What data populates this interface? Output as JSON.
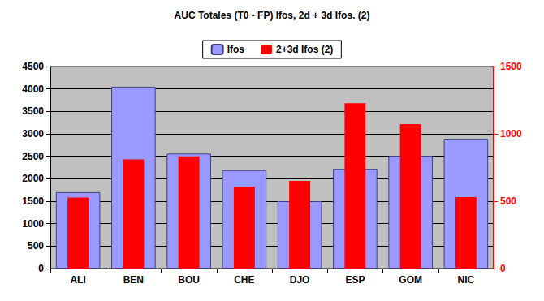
{
  "chart_data": {
    "type": "bar",
    "title": "AUC Totales (T0 - FP) Ifos, 2d + 3d Ifos. (2)",
    "categories": [
      "ALI",
      "BEN",
      "BOU",
      "CHE",
      "DJO",
      "ESP",
      "GOM",
      "NIC"
    ],
    "series": [
      {
        "name": "Ifos",
        "color": "#9999FF",
        "values": [
          1700,
          4050,
          2560,
          2190,
          1500,
          2220,
          2510,
          2890
        ]
      },
      {
        "name": "2+3d Ifos (2)",
        "color": "#FF0000",
        "axis": "y2",
        "values": [
          527,
          810,
          833,
          607,
          650,
          1227,
          1073,
          530
        ]
      }
    ],
    "ylim": [
      0,
      4500
    ],
    "yticks": [
      0,
      500,
      1000,
      1500,
      2000,
      2500,
      3000,
      3500,
      4000,
      4500
    ],
    "y2lim": [
      0,
      1500
    ],
    "y2ticks": [
      0,
      500,
      1000,
      1500
    ],
    "grid": true,
    "legend": "top"
  }
}
